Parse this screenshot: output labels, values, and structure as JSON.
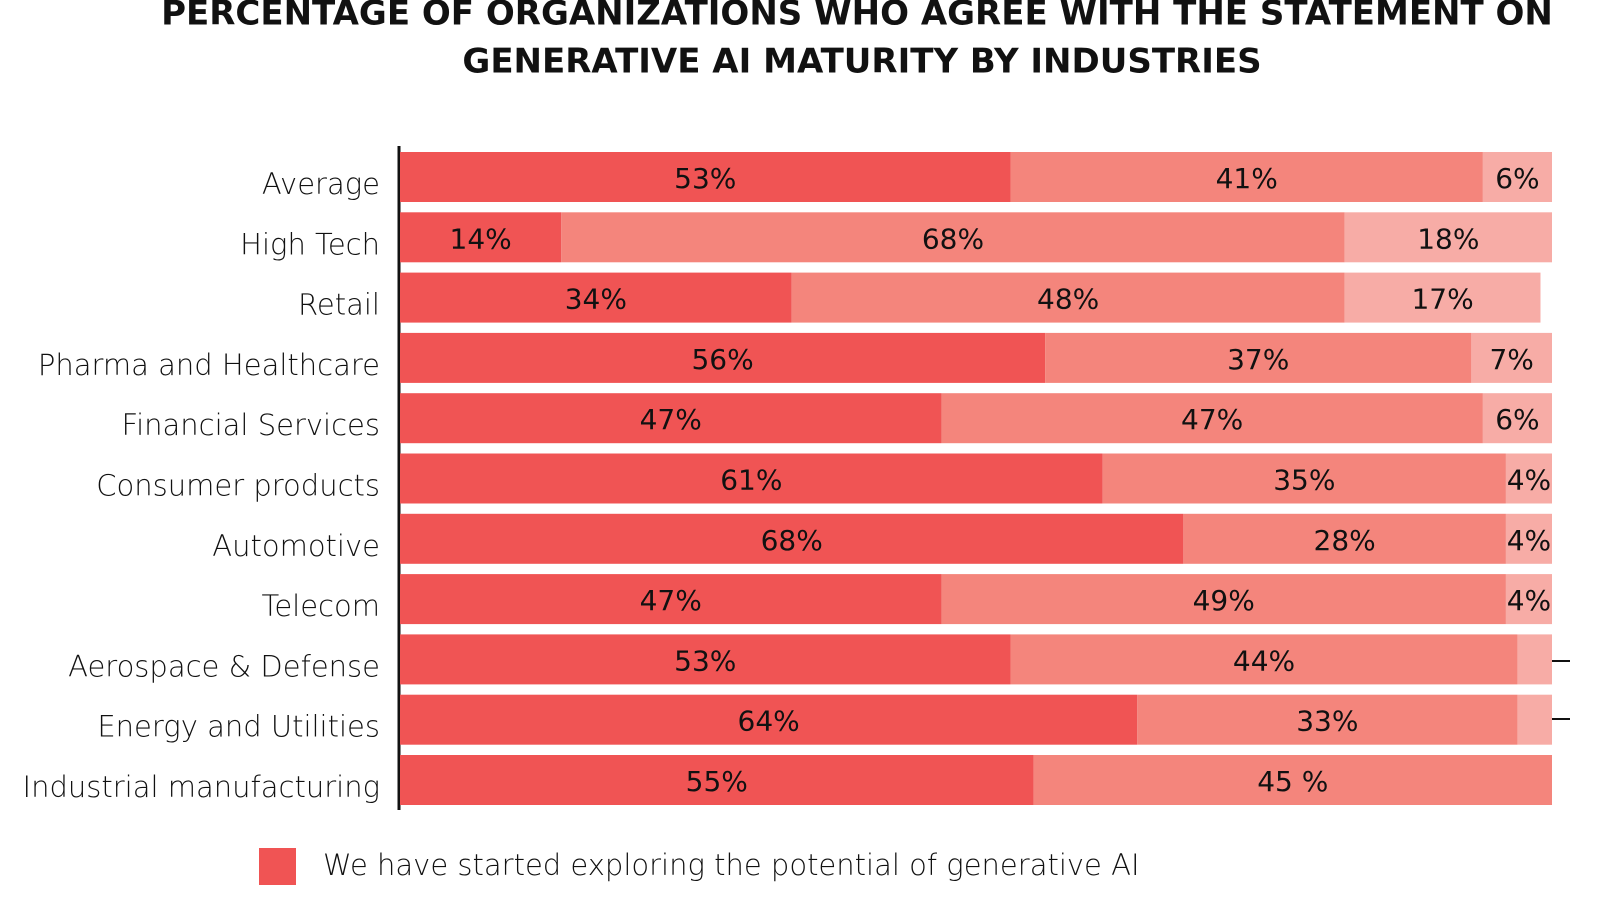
{
  "chart_data": {
    "type": "stacked_bar_horizontal",
    "title": [
      "PERCENTAGE OF ORGANIZATIONS WHO AGREE WITH THE STATEMENT ON",
      "GENERATIVE AI MATURITY BY INDUSTRIES"
    ],
    "categories": [
      "Average",
      "High Tech",
      "Retail",
      "Pharma and Healthcare",
      "Financial Services",
      "Consumer products",
      "Automotive",
      "Telecom",
      "Aerospace & Defense",
      "Energy and Utilities",
      "Industrial manufacturing"
    ],
    "xlim": [
      0,
      100
    ],
    "series": [
      {
        "name": "We have started exploring the potential of generative AI",
        "color": "#f05454",
        "values": [
          53,
          14,
          34,
          56,
          47,
          61,
          68,
          47,
          53,
          64,
          55
        ],
        "value_labels": [
          "53%",
          "14%",
          "34%",
          "56%",
          "47%",
          "61%",
          "68%",
          "47%",
          "53%",
          "64%",
          "55%"
        ]
      },
      {
        "color": "#f4857c",
        "values": [
          41,
          68,
          48,
          37,
          47,
          35,
          28,
          49,
          44,
          33,
          45
        ],
        "value_labels": [
          "41%",
          "68%",
          "48%",
          "37%",
          "47%",
          "35%",
          "28%",
          "49%",
          "44%",
          "33%",
          "45 %"
        ]
      },
      {
        "color": "#f7aca6",
        "values": [
          6,
          18,
          17,
          7,
          6,
          4,
          4,
          4,
          3,
          3,
          null
        ],
        "value_labels": [
          "6%",
          "18%",
          "17%",
          "7%",
          "6%",
          "4%",
          "4%",
          "4%",
          null,
          null,
          null
        ]
      }
    ]
  }
}
